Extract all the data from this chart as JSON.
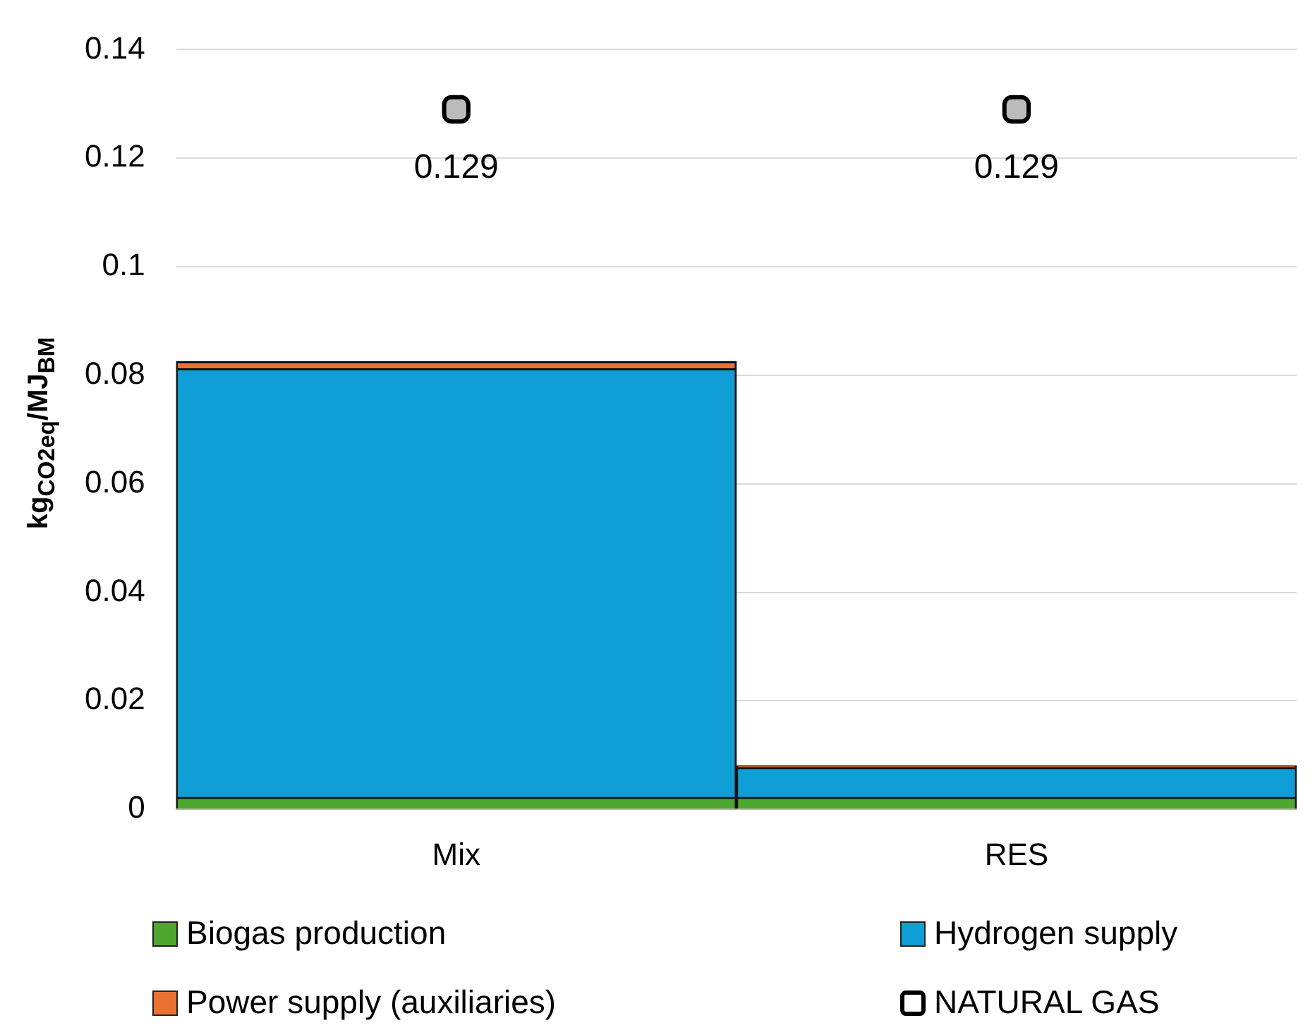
{
  "chart_data": {
    "type": "bar",
    "stacked": true,
    "ylabel": "kg$_{CO2eq}$/MJ$_{BM}$",
    "categories": [
      "Mix",
      "RES"
    ],
    "series": [
      {
        "name": "Biogas production",
        "color": "#4ea72e",
        "values": [
          0.0022,
          0.0022
        ]
      },
      {
        "name": "Hydrogen supply",
        "color": "#0f9ed5",
        "values": [
          0.079,
          0.0055
        ]
      },
      {
        "name": "Power supply (auxiliaries)",
        "color": "#e97132",
        "values": [
          0.0013,
          0.0003
        ]
      },
      {
        "name": "NATURAL GAS",
        "type": "scatter",
        "marker": "square",
        "color": "#000000",
        "values": [
          0.129,
          0.129
        ],
        "value_labels": [
          "0.129",
          "0.129"
        ]
      }
    ],
    "ylim": [
      0,
      0.14
    ],
    "yticks": [
      0,
      0.02,
      0.04,
      0.06,
      0.08,
      0.1,
      0.12,
      0.14
    ],
    "grid": "y",
    "legend": "bottom"
  }
}
